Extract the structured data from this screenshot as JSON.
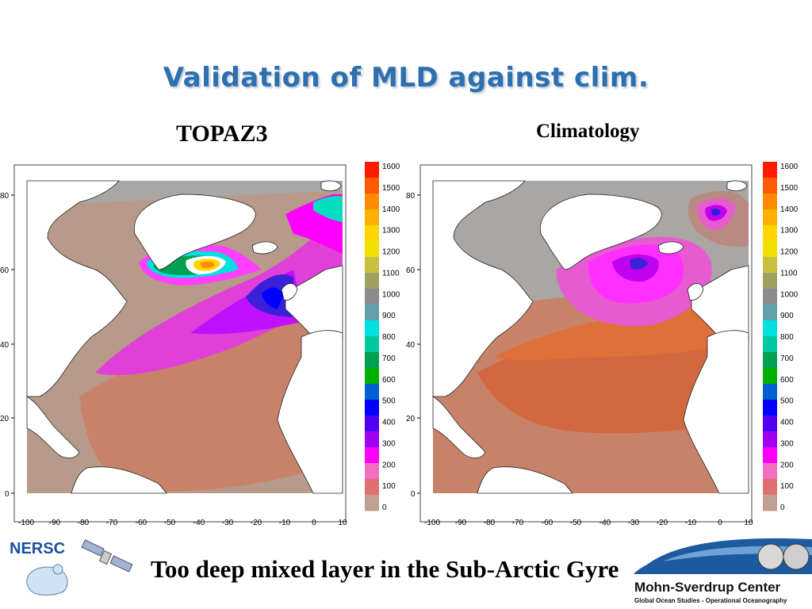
{
  "slide": {
    "title": "Validation of MLD against clim.",
    "caption": "Too deep mixed layer in the Sub-Arctic Gyre"
  },
  "left_panel": {
    "label": "TOPAZ3"
  },
  "right_panel": {
    "label": "Climatology"
  },
  "axes": {
    "x_ticks": [
      "-100",
      "-90",
      "-80",
      "-70",
      "-60",
      "-50",
      "-40",
      "-30",
      "-20",
      "-10",
      "0",
      "10"
    ],
    "y_ticks": [
      "80",
      "60",
      "40",
      "20",
      "0"
    ]
  },
  "colorbar": {
    "ticks": [
      "1600",
      "1500",
      "1400",
      "1300",
      "1200",
      "1100",
      "1000",
      "900",
      "800",
      "700",
      "600",
      "500",
      "400",
      "300",
      "200",
      "100",
      "0"
    ],
    "colors": [
      "#ff1a00",
      "#ff5a00",
      "#ff8c00",
      "#ffb000",
      "#ffd500",
      "#f0e000",
      "#c8c040",
      "#a0a060",
      "#8c8c8c",
      "#60a0a8",
      "#00e0e0",
      "#00c8a0",
      "#00a050",
      "#00b000",
      "#0060d0",
      "#0000ff",
      "#5000f0",
      "#a000f0",
      "#ff00ff",
      "#f070c0",
      "#e07070",
      "#c0a090"
    ]
  },
  "logos": {
    "nersc_text": "NERSC",
    "msc_title": "Mohn-Sverdrup Center",
    "msc_subtitle": "Global Ocean Studies - Operational Oceanography"
  },
  "colors": {
    "title": "#2f6fae",
    "land": "#ffffff",
    "ocean_shallow": "#a9a6a4",
    "ocean_mid": "#c7836a",
    "ocean_deep": "#d2683f"
  }
}
